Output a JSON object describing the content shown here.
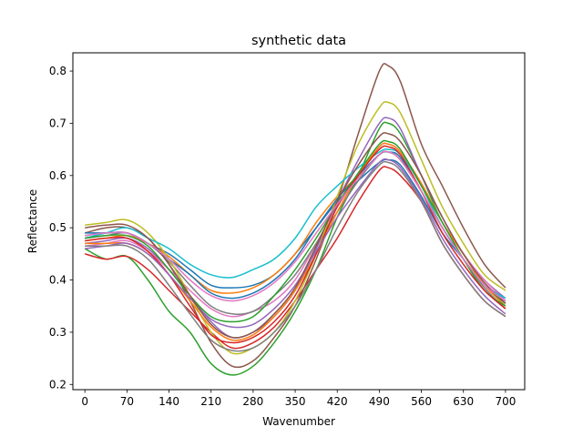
{
  "chart_data": {
    "type": "line",
    "title": "synthetic data",
    "xlabel": "Wavenumber",
    "ylabel": "Reflectance",
    "xlim": [
      -20,
      732
    ],
    "ylim": [
      0.19,
      0.835
    ],
    "xticks": [
      0,
      70,
      140,
      210,
      280,
      350,
      420,
      490,
      560,
      630,
      700
    ],
    "yticks": [
      0.2,
      0.3,
      0.4,
      0.5,
      0.6,
      0.7,
      0.8
    ],
    "ytick_labels": [
      "0.2",
      "0.3",
      "0.4",
      "0.5",
      "0.6",
      "0.7",
      "0.8"
    ],
    "grid": false,
    "legend": "none",
    "colors": [
      "#1f77b4",
      "#ff7f0e",
      "#2ca02c",
      "#d62728",
      "#9467bd",
      "#8c564b",
      "#e377c2",
      "#7f7f7f",
      "#bcbd22",
      "#17becf"
    ],
    "x": [
      0,
      35,
      70,
      105,
      140,
      175,
      210,
      245,
      280,
      315,
      350,
      385,
      420,
      455,
      490,
      505,
      525,
      560,
      595,
      630,
      665,
      700
    ],
    "series": [
      {
        "values": [
          0.485,
          0.49,
          0.49,
          0.47,
          0.45,
          0.42,
          0.39,
          0.385,
          0.39,
          0.41,
          0.45,
          0.5,
          0.55,
          0.59,
          0.625,
          0.63,
          0.62,
          0.56,
          0.49,
          0.44,
          0.39,
          0.36
        ]
      },
      {
        "values": [
          0.475,
          0.48,
          0.485,
          0.47,
          0.445,
          0.41,
          0.38,
          0.375,
          0.385,
          0.41,
          0.45,
          0.51,
          0.56,
          0.6,
          0.64,
          0.645,
          0.63,
          0.57,
          0.5,
          0.44,
          0.39,
          0.355
        ]
      },
      {
        "values": [
          0.46,
          0.44,
          0.445,
          0.4,
          0.34,
          0.3,
          0.24,
          0.218,
          0.235,
          0.28,
          0.34,
          0.42,
          0.52,
          0.6,
          0.69,
          0.7,
          0.68,
          0.6,
          0.51,
          0.45,
          0.39,
          0.355
        ]
      },
      {
        "values": [
          0.45,
          0.44,
          0.445,
          0.42,
          0.38,
          0.34,
          0.3,
          0.27,
          0.28,
          0.31,
          0.36,
          0.42,
          0.48,
          0.55,
          0.61,
          0.615,
          0.6,
          0.55,
          0.47,
          0.41,
          0.36,
          0.33
        ]
      },
      {
        "values": [
          0.47,
          0.475,
          0.48,
          0.46,
          0.42,
          0.37,
          0.32,
          0.29,
          0.3,
          0.33,
          0.38,
          0.46,
          0.55,
          0.63,
          0.7,
          0.71,
          0.69,
          0.6,
          0.52,
          0.45,
          0.4,
          0.365
        ]
      },
      {
        "values": [
          0.49,
          0.5,
          0.5,
          0.48,
          0.43,
          0.36,
          0.28,
          0.235,
          0.245,
          0.29,
          0.35,
          0.44,
          0.55,
          0.68,
          0.8,
          0.81,
          0.78,
          0.66,
          0.58,
          0.5,
          0.43,
          0.385
        ]
      },
      {
        "values": [
          0.465,
          0.47,
          0.475,
          0.455,
          0.42,
          0.38,
          0.345,
          0.33,
          0.34,
          0.36,
          0.4,
          0.47,
          0.54,
          0.6,
          0.655,
          0.66,
          0.645,
          0.58,
          0.51,
          0.45,
          0.4,
          0.36
        ]
      },
      {
        "values": [
          0.48,
          0.485,
          0.49,
          0.47,
          0.435,
          0.39,
          0.35,
          0.335,
          0.34,
          0.37,
          0.41,
          0.47,
          0.53,
          0.59,
          0.64,
          0.645,
          0.63,
          0.57,
          0.5,
          0.44,
          0.385,
          0.345
        ]
      },
      {
        "values": [
          0.505,
          0.51,
          0.515,
          0.49,
          0.44,
          0.37,
          0.3,
          0.26,
          0.27,
          0.3,
          0.36,
          0.45,
          0.56,
          0.66,
          0.73,
          0.74,
          0.72,
          0.63,
          0.54,
          0.47,
          0.41,
          0.38
        ]
      },
      {
        "values": [
          0.48,
          0.49,
          0.5,
          0.48,
          0.46,
          0.43,
          0.41,
          0.405,
          0.42,
          0.44,
          0.48,
          0.54,
          0.58,
          0.615,
          0.645,
          0.65,
          0.64,
          0.58,
          0.5,
          0.44,
          0.39,
          0.365
        ]
      },
      {
        "values": [
          0.49,
          0.49,
          0.49,
          0.47,
          0.44,
          0.41,
          0.375,
          0.365,
          0.375,
          0.4,
          0.44,
          0.5,
          0.555,
          0.6,
          0.64,
          0.645,
          0.635,
          0.57,
          0.5,
          0.44,
          0.39,
          0.36
        ]
      },
      {
        "values": [
          0.47,
          0.47,
          0.47,
          0.45,
          0.41,
          0.36,
          0.31,
          0.285,
          0.295,
          0.33,
          0.38,
          0.45,
          0.53,
          0.6,
          0.655,
          0.66,
          0.645,
          0.585,
          0.51,
          0.45,
          0.39,
          0.35
        ]
      },
      {
        "values": [
          0.48,
          0.485,
          0.485,
          0.465,
          0.42,
          0.37,
          0.33,
          0.32,
          0.33,
          0.37,
          0.42,
          0.48,
          0.545,
          0.605,
          0.66,
          0.665,
          0.65,
          0.58,
          0.51,
          0.44,
          0.38,
          0.35
        ]
      },
      {
        "values": [
          0.475,
          0.48,
          0.48,
          0.455,
          0.41,
          0.35,
          0.295,
          0.28,
          0.29,
          0.32,
          0.37,
          0.45,
          0.54,
          0.6,
          0.65,
          0.655,
          0.64,
          0.57,
          0.49,
          0.43,
          0.38,
          0.345
        ]
      },
      {
        "values": [
          0.46,
          0.465,
          0.47,
          0.45,
          0.41,
          0.365,
          0.325,
          0.31,
          0.315,
          0.345,
          0.39,
          0.455,
          0.52,
          0.575,
          0.625,
          0.63,
          0.615,
          0.555,
          0.48,
          0.42,
          0.37,
          0.335
        ]
      },
      {
        "values": [
          0.5,
          0.505,
          0.505,
          0.48,
          0.43,
          0.37,
          0.315,
          0.29,
          0.3,
          0.335,
          0.385,
          0.465,
          0.55,
          0.62,
          0.675,
          0.68,
          0.665,
          0.6,
          0.52,
          0.45,
          0.395,
          0.355
        ]
      },
      {
        "values": [
          0.485,
          0.49,
          0.49,
          0.47,
          0.44,
          0.4,
          0.37,
          0.36,
          0.37,
          0.395,
          0.435,
          0.49,
          0.545,
          0.595,
          0.64,
          0.645,
          0.63,
          0.57,
          0.5,
          0.44,
          0.39,
          0.36
        ]
      },
      {
        "values": [
          0.465,
          0.465,
          0.465,
          0.44,
          0.39,
          0.335,
          0.285,
          0.265,
          0.27,
          0.3,
          0.35,
          0.42,
          0.5,
          0.57,
          0.62,
          0.625,
          0.61,
          0.55,
          0.47,
          0.41,
          0.36,
          0.33
        ]
      }
    ]
  }
}
